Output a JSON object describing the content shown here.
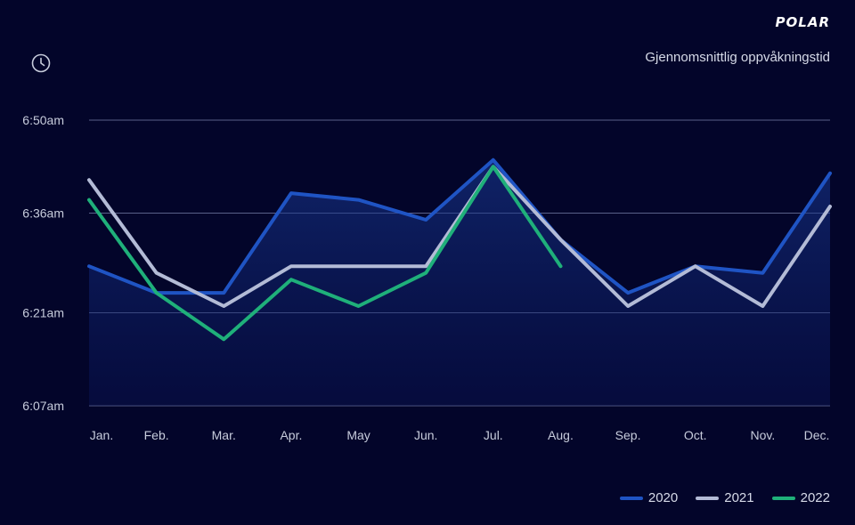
{
  "brand": {
    "logo_text": "POLAR"
  },
  "header": {
    "clock_icon": "clock-icon"
  },
  "chart_data": {
    "type": "line",
    "title": "Gjennomsnittlig oppvåkningstid",
    "xlabel": "",
    "ylabel": "",
    "categories": [
      "Jan.",
      "Feb.",
      "Mar.",
      "Apr.",
      "May",
      "Jun.",
      "Jul.",
      "Aug.",
      "Sep.",
      "Oct.",
      "Nov.",
      "Dec."
    ],
    "y_ticks": [
      "6:07am",
      "6:21am",
      "6:36am",
      "6:50am"
    ],
    "ylim": [
      "6:07am",
      "6:50am"
    ],
    "grid": true,
    "legend_position": "bottom-right",
    "series": [
      {
        "name": "2020",
        "color": "#1f54c4",
        "filled": true,
        "values": [
          "6:28am",
          "6:24am",
          "6:24am",
          "6:39am",
          "6:38am",
          "6:35am",
          "6:44am",
          "6:32am",
          "6:24am",
          "6:28am",
          "6:27am",
          "6:42am"
        ]
      },
      {
        "name": "2021",
        "color": "#b3bbd6",
        "filled": false,
        "values": [
          "6:41am",
          "6:27am",
          "6:22am",
          "6:28am",
          "6:28am",
          "6:28am",
          "6:43am",
          "6:32am",
          "6:22am",
          "6:28am",
          "6:22am",
          "6:37am"
        ]
      },
      {
        "name": "2022",
        "color": "#1fb07a",
        "filled": false,
        "values": [
          "6:38am",
          "6:24am",
          "6:17am",
          "6:26am",
          "6:22am",
          "6:27am",
          "6:43am",
          "6:28am",
          null,
          null,
          null,
          null
        ]
      }
    ]
  }
}
